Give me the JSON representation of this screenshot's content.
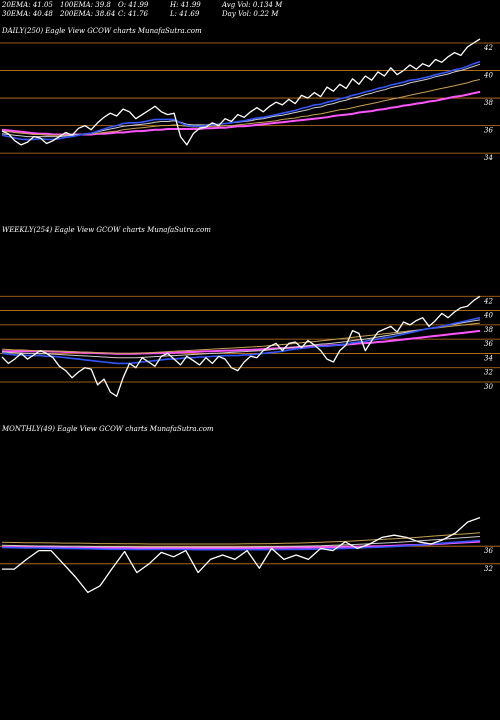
{
  "stats": {
    "row1": [
      "20EMA: 41.05",
      "100EMA: 39.8",
      "O: 41.99",
      "H: 41.99",
      "Avg Vol: 0.134  M"
    ],
    "row2": [
      "30EMA: 40.48",
      "200EMA: 38.64",
      "C: 41.76",
      "L: 41.69",
      "Day Vol: 0.22  M"
    ]
  },
  "chart_data": [
    {
      "type": "line",
      "label": "DAILY(250) Eagle  View  GCOW charts MunafaSutra.com",
      "yticks": [
        "42",
        "40",
        "38",
        "36",
        "34"
      ],
      "ylim": [
        33.5,
        42.8
      ],
      "series": [
        {
          "color": "#ffffff",
          "values": [
            35.6,
            35.4,
            34.9,
            34.6,
            34.8,
            35.2,
            35.1,
            34.7,
            34.9,
            35.2,
            35.5,
            35.3,
            35.8,
            36.0,
            35.7,
            36.2,
            36.6,
            36.9,
            36.7,
            37.2,
            37.0,
            36.5,
            36.8,
            37.1,
            37.4,
            37.0,
            36.8,
            36.9,
            35.2,
            34.6,
            35.4,
            35.8,
            35.9,
            36.2,
            36.0,
            36.5,
            36.3,
            36.8,
            36.6,
            37.0,
            37.3,
            37.0,
            37.4,
            37.7,
            37.5,
            37.9,
            37.6,
            38.2,
            38.0,
            38.4,
            38.1,
            38.8,
            38.5,
            39.0,
            38.7,
            39.4,
            39.0,
            39.6,
            39.3,
            39.9,
            39.6,
            40.2,
            39.7,
            40.0,
            40.4,
            40.1,
            40.5,
            40.3,
            40.8,
            40.6,
            41.0,
            41.3,
            41.1,
            41.7,
            42.0,
            42.3
          ]
        },
        {
          "color": "#3355ff",
          "values": [
            35.3,
            35.2,
            35.1,
            35.0,
            35.0,
            35.0,
            35.05,
            35.0,
            35.0,
            35.05,
            35.15,
            35.2,
            35.3,
            35.4,
            35.45,
            35.6,
            35.75,
            35.9,
            36.0,
            36.15,
            36.2,
            36.2,
            36.25,
            36.35,
            36.45,
            36.45,
            36.45,
            36.45,
            36.2,
            36.0,
            35.95,
            35.95,
            36.0,
            36.05,
            36.1,
            36.15,
            36.2,
            36.3,
            36.35,
            36.45,
            36.55,
            36.6,
            36.7,
            36.8,
            36.9,
            37.0,
            37.1,
            37.25,
            37.35,
            37.5,
            37.55,
            37.7,
            37.8,
            37.95,
            38.05,
            38.2,
            38.3,
            38.45,
            38.55,
            38.7,
            38.8,
            38.95,
            39.05,
            39.15,
            39.3,
            39.35,
            39.45,
            39.55,
            39.7,
            39.8,
            39.9,
            40.05,
            40.15,
            40.3,
            40.5,
            40.65
          ]
        },
        {
          "color": "#cccccc",
          "values": [
            35.4,
            35.35,
            35.3,
            35.25,
            35.2,
            35.2,
            35.2,
            35.2,
            35.2,
            35.2,
            35.25,
            35.3,
            35.35,
            35.4,
            35.45,
            35.55,
            35.65,
            35.75,
            35.85,
            35.95,
            36.0,
            36.05,
            36.1,
            36.15,
            36.25,
            36.3,
            36.3,
            36.35,
            36.25,
            36.1,
            36.05,
            36.05,
            36.05,
            36.1,
            36.1,
            36.15,
            36.2,
            36.25,
            36.3,
            36.35,
            36.45,
            36.5,
            36.6,
            36.7,
            36.75,
            36.85,
            36.95,
            37.05,
            37.15,
            37.3,
            37.35,
            37.5,
            37.6,
            37.75,
            37.85,
            38.0,
            38.1,
            38.25,
            38.35,
            38.5,
            38.6,
            38.75,
            38.85,
            38.95,
            39.1,
            39.2,
            39.3,
            39.4,
            39.55,
            39.65,
            39.75,
            39.9,
            40.0,
            40.15,
            40.3,
            40.45
          ]
        },
        {
          "color": "#c8a050",
          "values": [
            35.6,
            35.55,
            35.5,
            35.45,
            35.4,
            35.35,
            35.35,
            35.3,
            35.3,
            35.3,
            35.3,
            35.3,
            35.35,
            35.35,
            35.4,
            35.45,
            35.5,
            35.55,
            35.6,
            35.7,
            35.75,
            35.8,
            35.85,
            35.9,
            35.95,
            36.0,
            36.0,
            36.05,
            36.0,
            35.95,
            35.9,
            35.9,
            35.9,
            35.95,
            35.95,
            36.0,
            36.0,
            36.05,
            36.1,
            36.15,
            36.2,
            36.25,
            36.3,
            36.35,
            36.45,
            36.5,
            36.55,
            36.65,
            36.7,
            36.8,
            36.85,
            36.95,
            37.05,
            37.15,
            37.2,
            37.3,
            37.4,
            37.5,
            37.6,
            37.7,
            37.8,
            37.9,
            38.0,
            38.1,
            38.2,
            38.3,
            38.4,
            38.5,
            38.6,
            38.7,
            38.8,
            38.9,
            39.0,
            39.1,
            39.25,
            39.35
          ]
        },
        {
          "color": "#ff55ff",
          "values": [
            35.7,
            35.65,
            35.6,
            35.55,
            35.5,
            35.45,
            35.4,
            35.4,
            35.35,
            35.35,
            35.35,
            35.35,
            35.35,
            35.35,
            35.35,
            35.4,
            35.4,
            35.45,
            35.5,
            35.5,
            35.55,
            35.6,
            35.6,
            35.65,
            35.7,
            35.7,
            35.75,
            35.75,
            35.75,
            35.75,
            35.75,
            35.75,
            35.8,
            35.8,
            35.85,
            35.85,
            35.9,
            35.95,
            35.95,
            36.0,
            36.05,
            36.1,
            36.15,
            36.2,
            36.25,
            36.3,
            36.35,
            36.4,
            36.45,
            36.5,
            36.55,
            36.6,
            36.7,
            36.75,
            36.8,
            36.85,
            36.95,
            37.0,
            37.05,
            37.15,
            37.2,
            37.3,
            37.35,
            37.45,
            37.5,
            37.6,
            37.65,
            37.75,
            37.8,
            37.9,
            38.0,
            38.1,
            38.15,
            38.25,
            38.35,
            38.45
          ]
        }
      ]
    },
    {
      "type": "line",
      "label": "WEEKLY(254) Eagle  View  GCOW charts MunafaSutra.com",
      "yticks": [
        "42",
        "40",
        "38",
        "36",
        "34",
        "32",
        "30"
      ],
      "ylim": [
        29.3,
        43.3
      ],
      "series": [
        {
          "color": "#ffffff",
          "values": [
            33.5,
            32.6,
            33.2,
            34.0,
            33.2,
            33.8,
            34.4,
            34.0,
            33.4,
            32.2,
            31.6,
            30.6,
            31.4,
            32.0,
            31.8,
            29.6,
            30.4,
            28.6,
            28.0,
            30.6,
            32.6,
            32.0,
            33.4,
            32.8,
            32.2,
            33.6,
            34.0,
            33.2,
            32.4,
            33.6,
            33.0,
            32.4,
            33.4,
            32.6,
            33.6,
            33.2,
            32.0,
            31.6,
            32.8,
            33.6,
            33.4,
            34.4,
            35.0,
            35.4,
            34.4,
            35.4,
            35.6,
            34.8,
            35.8,
            35.2,
            34.4,
            33.2,
            32.8,
            34.4,
            35.2,
            37.2,
            36.8,
            34.4,
            35.8,
            37.0,
            37.4,
            37.8,
            37.0,
            38.4,
            38.0,
            38.6,
            39.0,
            37.8,
            38.6,
            39.6,
            39.0,
            39.8,
            40.4,
            40.6,
            41.4,
            42.0
          ]
        },
        {
          "color": "#3355ff",
          "values": [
            34.0,
            33.9,
            33.8,
            33.8,
            33.7,
            33.7,
            33.7,
            33.6,
            33.6,
            33.5,
            33.4,
            33.3,
            33.2,
            33.1,
            33.0,
            32.9,
            32.8,
            32.7,
            32.6,
            32.6,
            32.6,
            32.7,
            32.8,
            32.9,
            33.0,
            33.1,
            33.2,
            33.2,
            33.3,
            33.4,
            33.4,
            33.5,
            33.5,
            33.6,
            33.6,
            33.7,
            33.7,
            33.7,
            33.8,
            33.8,
            33.9,
            34.0,
            34.1,
            34.2,
            34.3,
            34.5,
            34.6,
            34.7,
            34.8,
            34.9,
            35.0,
            35.0,
            35.1,
            35.2,
            35.3,
            35.5,
            35.6,
            35.7,
            35.9,
            36.0,
            36.2,
            36.3,
            36.5,
            36.7,
            36.9,
            37.1,
            37.3,
            37.5,
            37.6,
            37.8,
            38.0,
            38.2,
            38.4,
            38.6,
            38.8,
            39.0
          ]
        },
        {
          "color": "#cccccc",
          "values": [
            34.2,
            34.15,
            34.1,
            34.05,
            34.0,
            34.0,
            33.95,
            33.95,
            33.9,
            33.85,
            33.8,
            33.75,
            33.7,
            33.65,
            33.6,
            33.55,
            33.5,
            33.45,
            33.4,
            33.4,
            33.4,
            33.4,
            33.45,
            33.5,
            33.55,
            33.6,
            33.65,
            33.7,
            33.75,
            33.8,
            33.85,
            33.9,
            33.95,
            34.0,
            34.05,
            34.1,
            34.15,
            34.2,
            34.25,
            34.3,
            34.35,
            34.4,
            34.5,
            34.6,
            34.7,
            34.8,
            34.9,
            35.0,
            35.1,
            35.2,
            35.3,
            35.35,
            35.45,
            35.55,
            35.65,
            35.8,
            35.9,
            36.0,
            36.15,
            36.3,
            36.45,
            36.6,
            36.75,
            36.9,
            37.05,
            37.2,
            37.35,
            37.5,
            37.65,
            37.8,
            37.95,
            38.1,
            38.25,
            38.4,
            38.55,
            38.7
          ]
        },
        {
          "color": "#c8a050",
          "values": [
            34.6,
            34.55,
            34.5,
            34.5,
            34.45,
            34.4,
            34.4,
            34.35,
            34.35,
            34.3,
            34.3,
            34.25,
            34.2,
            34.2,
            34.15,
            34.1,
            34.1,
            34.05,
            34.0,
            34.0,
            34.0,
            34.05,
            34.05,
            34.1,
            34.15,
            34.2,
            34.25,
            34.3,
            34.35,
            34.4,
            34.45,
            34.5,
            34.55,
            34.6,
            34.65,
            34.7,
            34.75,
            34.8,
            34.85,
            34.9,
            34.95,
            35.0,
            35.1,
            35.15,
            35.25,
            35.3,
            35.4,
            35.5,
            35.6,
            35.65,
            35.75,
            35.85,
            35.95,
            36.05,
            36.15,
            36.25,
            36.35,
            36.45,
            36.55,
            36.65,
            36.75,
            36.85,
            36.95,
            37.05,
            37.15,
            37.25,
            37.35,
            37.45,
            37.55,
            37.65,
            37.75,
            37.85,
            37.95,
            38.05,
            38.15,
            38.25
          ]
        },
        {
          "color": "#ff55ff",
          "values": [
            34.3,
            34.3,
            34.3,
            34.3,
            34.3,
            34.3,
            34.3,
            34.3,
            34.25,
            34.25,
            34.2,
            34.2,
            34.15,
            34.1,
            34.1,
            34.05,
            34.0,
            34.0,
            33.95,
            33.95,
            33.95,
            33.95,
            34.0,
            34.0,
            34.05,
            34.05,
            34.1,
            34.1,
            34.15,
            34.2,
            34.2,
            34.25,
            34.3,
            34.3,
            34.35,
            34.4,
            34.4,
            34.45,
            34.5,
            34.5,
            34.55,
            34.6,
            34.65,
            34.7,
            34.75,
            34.8,
            34.85,
            34.9,
            34.95,
            35.0,
            35.05,
            35.1,
            35.15,
            35.2,
            35.25,
            35.3,
            35.4,
            35.45,
            35.5,
            35.6,
            35.65,
            35.75,
            35.85,
            35.95,
            36.05,
            36.15,
            36.25,
            36.35,
            36.45,
            36.55,
            36.65,
            36.75,
            36.85,
            36.95,
            37.05,
            37.15
          ]
        }
      ]
    },
    {
      "type": "line",
      "label": "MONTHLY(49) Eagle  View  GCOW charts MunafaSutra.com",
      "yticks": [
        "36",
        "32"
      ],
      "ylim": [
        21.5,
        46.5
      ],
      "series": [
        {
          "color": "#ffffff",
          "values": [
            30.8,
            30.8,
            33.0,
            35.0,
            35.0,
            32.0,
            29.0,
            25.5,
            27.0,
            31.0,
            34.8,
            30.0,
            32.0,
            34.6,
            33.6,
            35.0,
            30.0,
            33.0,
            34.0,
            33.0,
            35.0,
            31.0,
            35.5,
            33.0,
            34.0,
            33.0,
            35.5,
            35.0,
            37.0,
            35.5,
            36.5,
            38.0,
            38.5,
            38.0,
            37.0,
            36.5,
            37.5,
            39.0,
            41.5,
            42.5
          ]
        },
        {
          "color": "#3355ff",
          "values": [
            35.7,
            35.65,
            35.6,
            35.6,
            35.55,
            35.5,
            35.45,
            35.4,
            35.35,
            35.3,
            35.3,
            35.25,
            35.25,
            35.25,
            35.25,
            35.25,
            35.2,
            35.2,
            35.2,
            35.2,
            35.2,
            35.2,
            35.2,
            35.25,
            35.25,
            35.3,
            35.35,
            35.4,
            35.5,
            35.6,
            35.7,
            35.8,
            35.95,
            36.1,
            36.3,
            36.5,
            36.7,
            36.9,
            37.1,
            37.3
          ]
        },
        {
          "color": "#cccccc",
          "values": [
            36.2,
            36.15,
            36.1,
            36.05,
            36.05,
            36.0,
            36.0,
            35.95,
            35.9,
            35.9,
            35.9,
            35.85,
            35.85,
            35.85,
            35.85,
            35.85,
            35.85,
            35.85,
            35.85,
            35.85,
            35.85,
            35.9,
            35.9,
            35.95,
            36.0,
            36.05,
            36.1,
            36.2,
            36.3,
            36.4,
            36.55,
            36.7,
            36.85,
            37.0,
            37.2,
            37.4,
            37.6,
            37.8,
            38.0,
            38.2
          ]
        },
        {
          "color": "#c8a050",
          "values": [
            36.9,
            36.85,
            36.8,
            36.8,
            36.75,
            36.7,
            36.7,
            36.65,
            36.6,
            36.6,
            36.55,
            36.55,
            36.5,
            36.5,
            36.5,
            36.5,
            36.5,
            36.5,
            36.5,
            36.5,
            36.55,
            36.55,
            36.6,
            36.65,
            36.7,
            36.8,
            36.9,
            37.0,
            37.1,
            37.25,
            37.4,
            37.55,
            37.7,
            37.85,
            38.05,
            38.25,
            38.45,
            38.65,
            38.85,
            39.05
          ]
        },
        {
          "color": "#ff55ff",
          "values": [
            35.8,
            35.8,
            35.75,
            35.75,
            35.7,
            35.7,
            35.65,
            35.65,
            35.6,
            35.6,
            35.6,
            35.6,
            35.6,
            35.6,
            35.6,
            35.6,
            35.6,
            35.6,
            35.6,
            35.6,
            35.6,
            35.6,
            35.65,
            35.65,
            35.7,
            35.7,
            35.75,
            35.8,
            35.85,
            35.9,
            35.95,
            36.0,
            36.1,
            36.2,
            36.3,
            36.45,
            36.6,
            36.75,
            36.9,
            37.05
          ]
        }
      ]
    }
  ]
}
